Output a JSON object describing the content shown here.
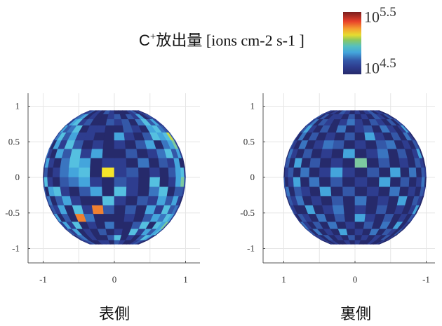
{
  "chart_data": {
    "type": "heatmap",
    "title": "C⁺放出量 [ions cm-2 s-1 ]",
    "title_parts": {
      "species": "C",
      "charge": "+",
      "quantity": "放出量",
      "unit": "[ions cm-2 s-1 ]"
    },
    "colorbar": {
      "min_label_base": "10",
      "min_label_exp": "4.5",
      "max_label_base": "10",
      "max_label_exp": "5.5",
      "min": 4.5,
      "max": 5.5,
      "scale": "log10"
    },
    "level_colors": [
      "#262a6b",
      "#2e3d8f",
      "#3458a8",
      "#3a75c0",
      "#44a5dc",
      "#55c0e0",
      "#7cc9a0",
      "#c8d84a",
      "#f5e52a",
      "#f08030"
    ],
    "grid": true,
    "panels": [
      {
        "label": "表側",
        "xticks": [
          "-1",
          "0",
          "1"
        ],
        "yticks": [
          "1",
          "0.5",
          "0",
          "-0.5",
          "-1"
        ],
        "x_reversed": false,
        "levels": [
          "011201021000120110",
          "123401001202140121",
          "214512002120352411",
          "042350110021045321",
          "135241100410254572",
          "204152010102403461",
          "310425140020135241",
          "141035401103021400",
          "020134508120102451",
          "151023410210501462",
          "204510240510350221",
          "130241005102142410",
          "021405192020415231",
          "140209300010243541",
          "214150103002505461",
          "021401020105142451",
          "102301002501025410",
          "011200110210012100"
        ]
      },
      {
        "label": "裏側",
        "xticks": [
          "1",
          "0",
          "-1"
        ],
        "yticks": [
          "1",
          "0.5",
          "0",
          "-0.5",
          "-1"
        ],
        "x_reversed": true,
        "levels": [
          "011010210101201100",
          "120201102010210210",
          "213021013102102021",
          "024102030120310141",
          "103020102041020310",
          "210301320102301021",
          "031020104013020140",
          "120402010602010210",
          "012030141020403021",
          "201403020104020130",
          "130210402010301021",
          "021301020301040210",
          "210040130102010140",
          "102103020410201021",
          "031020301020304010",
          "120301040103021020",
          "011020102010102010",
          "001010010100100100"
        ]
      }
    ]
  }
}
